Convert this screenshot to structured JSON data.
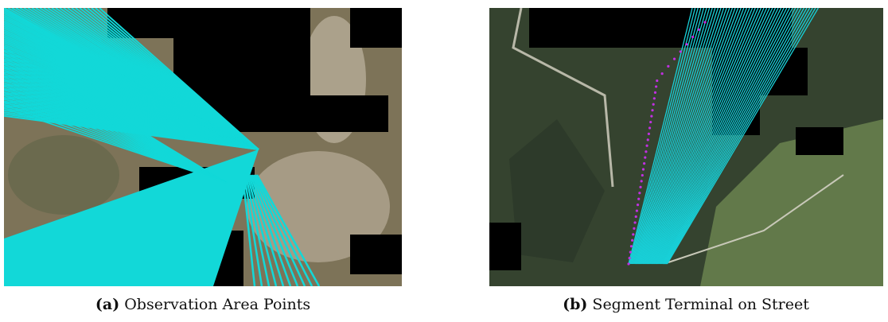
{
  "figures": [
    {
      "label": "(a)",
      "caption": "Observation Area Points"
    },
    {
      "label": "(b)",
      "caption": "Segment Terminal on Street"
    }
  ]
}
